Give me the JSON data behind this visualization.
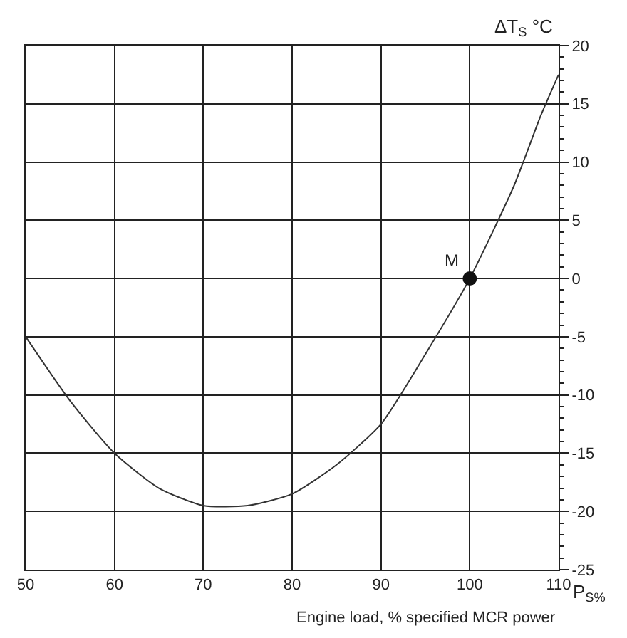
{
  "chart_data": {
    "type": "line",
    "xlabel": "Engine load, % specified MCR power",
    "ylabel": "ΔT$_{S}$ °C",
    "x": [
      50,
      55,
      60,
      65,
      70,
      75,
      80,
      85,
      90,
      95,
      100,
      105,
      108,
      110
    ],
    "series": [
      {
        "color": "#333333",
        "values": [
          -5,
          -10.5,
          -15,
          -18,
          -19.5,
          -19.5,
          -18.5,
          -16,
          -12.5,
          -6.5,
          0,
          8,
          14,
          17.5
        ],
        "marker": "none",
        "line_style": "solid"
      },
      {
        "type": "scatter",
        "color": "#111111",
        "x": [
          100
        ],
        "values": [
          0
        ],
        "marker": "circle"
      }
    ],
    "annotations": [
      {
        "text": "M",
        "x": 100,
        "y": 0
      },
      "P$_{S%}$"
    ],
    "xlim": [
      50,
      110
    ],
    "xticks": [
      50,
      60,
      70,
      80,
      90,
      100,
      110
    ],
    "ylim": [
      -25,
      20
    ],
    "yticks": [
      -25,
      -20,
      -15,
      -10,
      -5,
      0,
      5,
      10,
      15,
      20
    ],
    "grid": true,
    "legend": false
  }
}
